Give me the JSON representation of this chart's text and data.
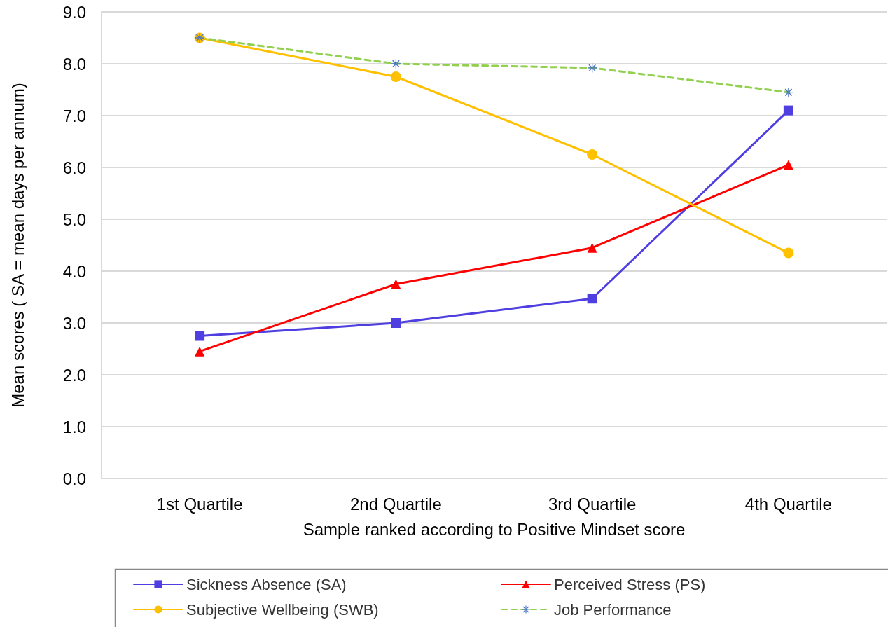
{
  "chart_data": {
    "type": "line",
    "xlabel": "Sample ranked according to Positive Mindset score",
    "ylabel": "Mean scores ( SA = mean days per annum)",
    "categories": [
      "1st Quartile",
      "2nd Quartile",
      "3rd Quartile",
      "4th Quartile"
    ],
    "series": [
      {
        "name": "Sickness Absence (SA)",
        "color": "#4f3ee0",
        "marker": "square",
        "line_style": "solid",
        "values": [
          2.75,
          3.0,
          3.47,
          7.1
        ]
      },
      {
        "name": "Perceived Stress (PS)",
        "color": "#ff0000",
        "marker": "triangle",
        "line_style": "solid",
        "values": [
          2.45,
          3.75,
          4.45,
          6.05
        ]
      },
      {
        "name": "Subjective Wellbeing (SWB)",
        "color": "#ffc000",
        "marker": "circle",
        "line_style": "solid",
        "values": [
          8.5,
          7.75,
          6.25,
          4.35
        ]
      },
      {
        "name": "Job Performance",
        "color": "#92d050",
        "marker": "cross",
        "line_style": "dashed",
        "values": [
          8.5,
          8.0,
          7.92,
          7.45
        ]
      }
    ],
    "ylim": [
      0,
      9
    ],
    "yticks": [
      {
        "value": 0,
        "label": "0.0"
      },
      {
        "value": 1,
        "label": "1.0"
      },
      {
        "value": 2,
        "label": "2.0"
      },
      {
        "value": 3,
        "label": "3.0"
      },
      {
        "value": 4,
        "label": "4.0"
      },
      {
        "value": 5,
        "label": "5.0"
      },
      {
        "value": 6,
        "label": "6.0"
      },
      {
        "value": 7,
        "label": "7.0"
      },
      {
        "value": 8,
        "label": "8.0"
      },
      {
        "value": 9,
        "label": "9.0"
      }
    ],
    "grid": "y",
    "legend": "bottom"
  }
}
